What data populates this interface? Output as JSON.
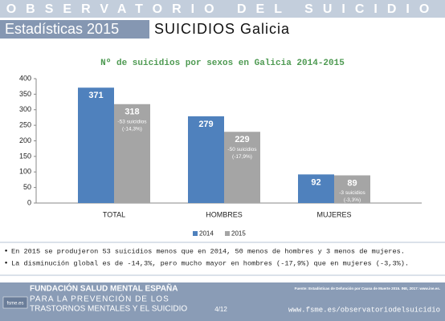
{
  "header": {
    "banner": "OBSERVATORIO DEL SUICIDIO",
    "section": "Estadísticas 2015",
    "subtitle": "SUICIDIOS Galicia"
  },
  "chart_data": {
    "type": "bar",
    "title": "Nº de suicidios por sexos en Galicia 2014-2015",
    "categories": [
      "TOTAL",
      "HOMBRES",
      "MUJERES"
    ],
    "series": [
      {
        "name": "2014",
        "color": "#4f81bd",
        "values": [
          371,
          279,
          92
        ]
      },
      {
        "name": "2015",
        "color": "#a5a5a5",
        "values": [
          318,
          229,
          89
        ],
        "notes": [
          [
            "-53 suicidios",
            "(-14,3%)"
          ],
          [
            "-50 suicidios",
            "(-17,9%)"
          ],
          [
            "-3 suicidios",
            "(-3,3%)"
          ]
        ]
      }
    ],
    "ylim": [
      0,
      400
    ],
    "yticks": [
      0,
      50,
      100,
      150,
      200,
      250,
      300,
      350,
      400
    ],
    "grid": false,
    "legend": "bottom"
  },
  "bullets": [
    "En 2015 se produjeron 53 suicidios menos que en 2014, 50 menos de hombres y 3 menos de mujeres.",
    "La disminución global es de -14,3%, pero mucho mayor en hombres (-17,9%) que en mujeres (-3,3%)."
  ],
  "footer": {
    "logo": "fsme.es",
    "org": "FUNDACIÓN SALUD MENTAL ESPAÑA",
    "tagline1": "PARA LA PREVENCIÓN DE LOS",
    "tagline2": "TRASTORNOS MENTALES Y EL SUICIDIO",
    "source": "Fuente: Estadísticas de Defunción por Causa de Muerte 2015. INE, 2017: www.ine.es.",
    "page": "4/12",
    "url": "www.fsme.es/observatoriodelsuicidio"
  }
}
